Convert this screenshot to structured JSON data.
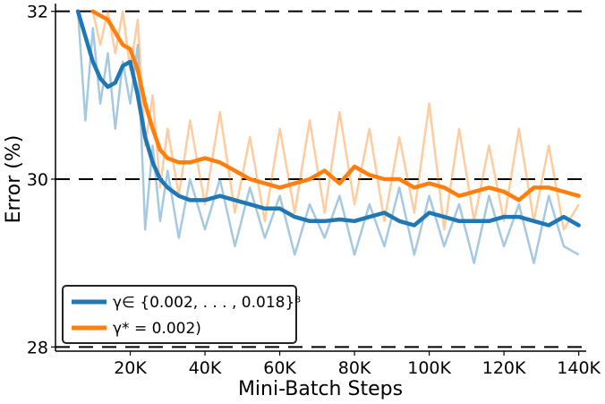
{
  "chart_data": {
    "type": "line",
    "title": "",
    "xlabel": "Mini-Batch Steps",
    "ylabel": "Error (%)",
    "xlim": [
      0,
      142000
    ],
    "ylim": [
      27.95,
      32.05
    ],
    "grid": {
      "style": "dashed",
      "y_lines": [
        28,
        30,
        32
      ]
    },
    "x_ticks": [
      {
        "value": 20000,
        "label": "20K"
      },
      {
        "value": 40000,
        "label": "40K"
      },
      {
        "value": 60000,
        "label": "60K"
      },
      {
        "value": 80000,
        "label": "80K"
      },
      {
        "value": 100000,
        "label": "100K"
      },
      {
        "value": 120000,
        "label": "120K"
      },
      {
        "value": 140000,
        "label": "140K"
      }
    ],
    "y_ticks": [
      {
        "value": 28,
        "label": "28"
      },
      {
        "value": 30,
        "label": "30"
      },
      {
        "value": 32,
        "label": "32"
      }
    ],
    "legend": {
      "placement": "lower-left",
      "entries": [
        {
          "label": "γ∈ {0.002, . . . , 0.018}⁸",
          "color": "#1f77b4"
        },
        {
          "label": "γ* = 0.002)",
          "color": "#ff7f0e"
        }
      ]
    },
    "series": [
      {
        "color": "#1f77b4",
        "smoothed": {
          "x": [
            6000,
            8000,
            10000,
            12000,
            14000,
            16000,
            18000,
            20000,
            22000,
            24000,
            26000,
            28000,
            30000,
            33000,
            36000,
            40000,
            44000,
            48000,
            52000,
            56000,
            60000,
            64000,
            68000,
            72000,
            76000,
            80000,
            84000,
            88000,
            92000,
            96000,
            100000,
            104000,
            108000,
            112000,
            116000,
            120000,
            124000,
            128000,
            132000,
            136000,
            140000
          ],
          "y": [
            32.0,
            31.7,
            31.4,
            31.2,
            31.1,
            31.15,
            31.35,
            31.4,
            31.0,
            30.5,
            30.2,
            30.0,
            29.9,
            29.8,
            29.75,
            29.75,
            29.8,
            29.75,
            29.7,
            29.65,
            29.65,
            29.55,
            29.5,
            29.5,
            29.52,
            29.5,
            29.55,
            29.6,
            29.5,
            29.45,
            29.6,
            29.55,
            29.5,
            29.5,
            29.5,
            29.55,
            29.55,
            29.5,
            29.45,
            29.55,
            29.45
          ]
        },
        "raw": {
          "x": [
            6000,
            8000,
            10000,
            12000,
            14000,
            16000,
            18000,
            20000,
            22000,
            24000,
            26000,
            28000,
            30000,
            33000,
            36000,
            40000,
            44000,
            48000,
            52000,
            56000,
            60000,
            64000,
            68000,
            72000,
            76000,
            80000,
            84000,
            88000,
            92000,
            96000,
            100000,
            104000,
            108000,
            112000,
            116000,
            120000,
            124000,
            128000,
            132000,
            136000,
            140000
          ],
          "y": [
            32.0,
            30.7,
            31.8,
            30.9,
            31.5,
            30.6,
            31.4,
            30.9,
            31.6,
            29.4,
            30.4,
            29.5,
            30.1,
            29.3,
            30.0,
            29.4,
            30.0,
            29.2,
            29.9,
            29.3,
            29.8,
            29.1,
            29.7,
            29.3,
            29.8,
            29.1,
            29.7,
            29.2,
            29.9,
            29.1,
            29.8,
            29.2,
            29.7,
            29.0,
            29.8,
            29.2,
            29.7,
            29.0,
            29.8,
            29.2,
            29.1
          ]
        }
      },
      {
        "color": "#ff7f0e",
        "smoothed": {
          "x": [
            10000,
            12000,
            14000,
            16000,
            18000,
            20000,
            22000,
            24000,
            26000,
            28000,
            30000,
            33000,
            36000,
            40000,
            44000,
            48000,
            52000,
            56000,
            60000,
            64000,
            68000,
            72000,
            76000,
            80000,
            84000,
            88000,
            92000,
            96000,
            100000,
            104000,
            108000,
            112000,
            116000,
            120000,
            124000,
            128000,
            132000,
            136000,
            140000
          ],
          "y": [
            32.0,
            31.95,
            31.9,
            31.75,
            31.6,
            31.55,
            31.3,
            30.9,
            30.6,
            30.35,
            30.25,
            30.2,
            30.2,
            30.25,
            30.2,
            30.1,
            30.0,
            29.95,
            29.9,
            29.95,
            30.0,
            30.1,
            29.95,
            30.15,
            30.05,
            30.0,
            30.0,
            29.9,
            29.95,
            29.9,
            29.8,
            29.85,
            29.9,
            29.85,
            29.75,
            29.9,
            29.9,
            29.85,
            29.8
          ]
        },
        "raw": {
          "x": [
            10000,
            12000,
            14000,
            16000,
            18000,
            20000,
            22000,
            24000,
            26000,
            28000,
            30000,
            33000,
            36000,
            40000,
            44000,
            48000,
            52000,
            56000,
            60000,
            64000,
            68000,
            72000,
            76000,
            80000,
            84000,
            88000,
            92000,
            96000,
            100000,
            104000,
            108000,
            112000,
            116000,
            120000,
            124000,
            128000,
            132000,
            136000,
            140000
          ],
          "y": [
            32.0,
            31.6,
            32.0,
            31.5,
            32.0,
            31.3,
            31.9,
            30.4,
            31.0,
            29.9,
            30.6,
            29.8,
            30.7,
            29.7,
            30.8,
            29.6,
            30.5,
            29.5,
            30.6,
            29.6,
            30.7,
            29.6,
            30.8,
            29.7,
            30.6,
            29.5,
            30.5,
            29.6,
            30.9,
            29.4,
            30.6,
            29.5,
            30.4,
            29.5,
            30.6,
            29.5,
            30.4,
            29.4,
            29.7
          ]
        }
      }
    ]
  }
}
